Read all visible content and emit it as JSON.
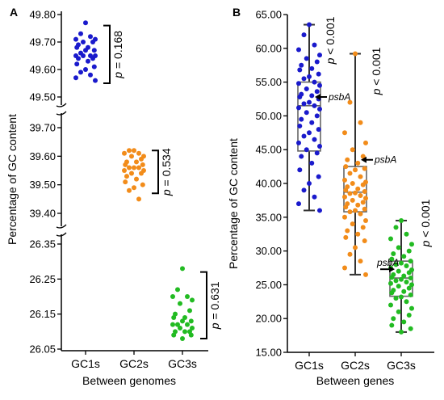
{
  "chart_data": [
    {
      "panel": "A",
      "type": "scatter",
      "xlabel": "Between genomes",
      "ylabel": "Percentage of GC content",
      "categories": [
        "GC1s",
        "GC2s",
        "GC3s"
      ],
      "y_axis_breaks": [
        {
          "range": [
            49.5,
            49.8
          ],
          "ticks": [
            "49.80",
            "49.70",
            "49.60",
            "49.50"
          ]
        },
        {
          "range": [
            39.4,
            39.7
          ],
          "ticks": [
            "39.70",
            "39.60",
            "39.50",
            "39.40"
          ]
        },
        {
          "range": [
            26.05,
            26.35
          ],
          "ticks": [
            "26.35",
            "26.25",
            "26.15",
            "26.05"
          ]
        }
      ],
      "series": [
        {
          "category": "GC1s",
          "color": "#1a1acc",
          "values": [
            49.77,
            49.73,
            49.72,
            49.71,
            49.71,
            49.7,
            49.7,
            49.69,
            49.68,
            49.68,
            49.67,
            49.67,
            49.66,
            49.65,
            49.65,
            49.65,
            49.65,
            49.64,
            49.64,
            49.63,
            49.62,
            49.61,
            49.6,
            49.59,
            49.58,
            49.57,
            49.56
          ]
        },
        {
          "category": "GC2s",
          "color": "#f28c1a",
          "values": [
            39.62,
            39.62,
            39.61,
            39.61,
            39.6,
            39.6,
            39.59,
            39.58,
            39.58,
            39.57,
            39.57,
            39.56,
            39.56,
            39.56,
            39.55,
            39.55,
            39.54,
            39.54,
            39.53,
            39.52,
            39.51,
            39.5,
            39.49,
            39.48,
            39.45
          ]
        },
        {
          "category": "GC3s",
          "color": "#22bb22",
          "values": [
            26.28,
            26.22,
            26.2,
            26.2,
            26.19,
            26.18,
            26.16,
            26.15,
            26.14,
            26.14,
            26.13,
            26.13,
            26.12,
            26.12,
            26.12,
            26.11,
            26.11,
            26.1,
            26.1,
            26.1,
            26.09,
            26.09,
            26.08
          ]
        }
      ],
      "annotations": [
        {
          "category": "GC1s",
          "text": "p = 0.168",
          "bracket": [
            49.55,
            49.76
          ]
        },
        {
          "category": "GC2s",
          "text": "p = 0.534",
          "bracket": [
            39.47,
            39.62
          ]
        },
        {
          "category": "GC3s",
          "text": "p = 0.631",
          "bracket": [
            26.08,
            26.27
          ]
        }
      ]
    },
    {
      "panel": "B",
      "type": "box",
      "xlabel": "Between genes",
      "ylabel": "Percentage of GC content",
      "categories": [
        "GC1s",
        "GC2s",
        "GC3s"
      ],
      "ylim": [
        15,
        65
      ],
      "yticks": [
        "65.00",
        "60.00",
        "55.00",
        "50.00",
        "45.00",
        "40.00",
        "35.00",
        "30.00",
        "25.00",
        "20.00",
        "15.00"
      ],
      "series": [
        {
          "category": "GC1s",
          "color": "#1a1acc",
          "box": {
            "min": 36.0,
            "q1": 44.8,
            "median": 51.5,
            "q3": 55.0,
            "max": 63.5
          },
          "values": [
            63.5,
            62.0,
            60.5,
            59.8,
            59.0,
            58.5,
            58.0,
            57.5,
            57.0,
            56.8,
            56.2,
            55.8,
            55.5,
            55.0,
            54.8,
            54.5,
            54.0,
            53.6,
            53.2,
            53.0,
            52.8,
            52.5,
            52.0,
            51.8,
            51.5,
            51.2,
            51.0,
            50.5,
            50.0,
            49.5,
            49.0,
            48.5,
            48.0,
            47.5,
            47.0,
            46.5,
            46.0,
            45.5,
            45.0,
            44.5,
            44.0,
            43.0,
            42.0,
            41.0,
            40.0,
            39.0,
            38.0,
            37.0,
            36.0
          ]
        },
        {
          "category": "GC2s",
          "color": "#f28c1a",
          "box": {
            "min": 26.5,
            "q1": 35.8,
            "median": 38.7,
            "q3": 42.5,
            "max": 59.2
          },
          "values": [
            59.2,
            52.0,
            49.0,
            47.5,
            46.0,
            45.0,
            44.0,
            43.5,
            43.0,
            42.5,
            42.2,
            42.0,
            41.5,
            41.0,
            40.5,
            40.2,
            40.0,
            39.8,
            39.5,
            39.2,
            39.0,
            38.8,
            38.6,
            38.5,
            38.2,
            38.0,
            37.8,
            37.5,
            37.2,
            37.0,
            36.8,
            36.5,
            36.2,
            36.0,
            35.8,
            35.5,
            35.0,
            34.5,
            34.0,
            33.5,
            33.0,
            32.5,
            32.0,
            31.5,
            30.5,
            29.5,
            28.5,
            27.5,
            26.5
          ]
        },
        {
          "category": "GC3s",
          "color": "#22bb22",
          "box": {
            "min": 18.0,
            "q1": 23.3,
            "median": 26.0,
            "q3": 28.5,
            "max": 34.5
          },
          "values": [
            34.5,
            33.5,
            32.5,
            31.8,
            31.0,
            30.5,
            30.0,
            29.6,
            29.2,
            28.8,
            28.5,
            28.2,
            28.0,
            27.8,
            27.5,
            27.2,
            27.0,
            26.8,
            26.5,
            26.3,
            26.1,
            26.0,
            25.8,
            25.6,
            25.4,
            25.2,
            25.0,
            24.8,
            24.5,
            24.2,
            24.0,
            23.8,
            23.5,
            23.2,
            23.0,
            22.5,
            22.0,
            21.5,
            21.0,
            20.5,
            20.0,
            19.5,
            19.0,
            18.5,
            18.0
          ]
        }
      ],
      "annotations": [
        {
          "category": "GC1s",
          "text": "p < 0.001"
        },
        {
          "category": "GC2s",
          "text": "p < 0.001"
        },
        {
          "category": "GC3s",
          "text": "p < 0.001"
        }
      ],
      "gene_markers": [
        {
          "category": "GC1s",
          "label": "psbA",
          "value": 52.8
        },
        {
          "category": "GC2s",
          "label": "psbA",
          "value": 43.5
        },
        {
          "category": "GC3s",
          "label": "psbA",
          "value": 27.3
        }
      ]
    }
  ]
}
